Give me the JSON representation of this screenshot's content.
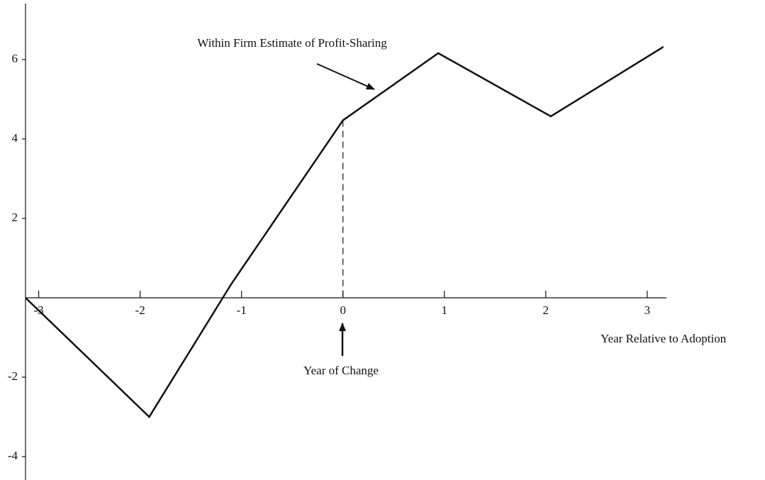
{
  "chart_data": {
    "type": "line",
    "x": [
      -3.13,
      -1.91,
      -1.1,
      0,
      0.94,
      2.05,
      3.16
    ],
    "values": [
      0,
      -3,
      0.35,
      4.47,
      6.16,
      4.57,
      6.32
    ],
    "color": "#111111",
    "xlabel": "Year Relative to Adoption",
    "annotations": [
      "Within Firm Estimate of Profit-Sharing",
      "Year of Change"
    ],
    "xlim": [
      -3.13,
      3.19
    ],
    "xticks": [
      -3,
      -2,
      -1,
      0,
      1,
      2,
      3
    ],
    "ylim": [
      -4.59,
      7.5
    ],
    "yticks": [
      -4,
      -2,
      2,
      4,
      6
    ],
    "grid": false
  }
}
